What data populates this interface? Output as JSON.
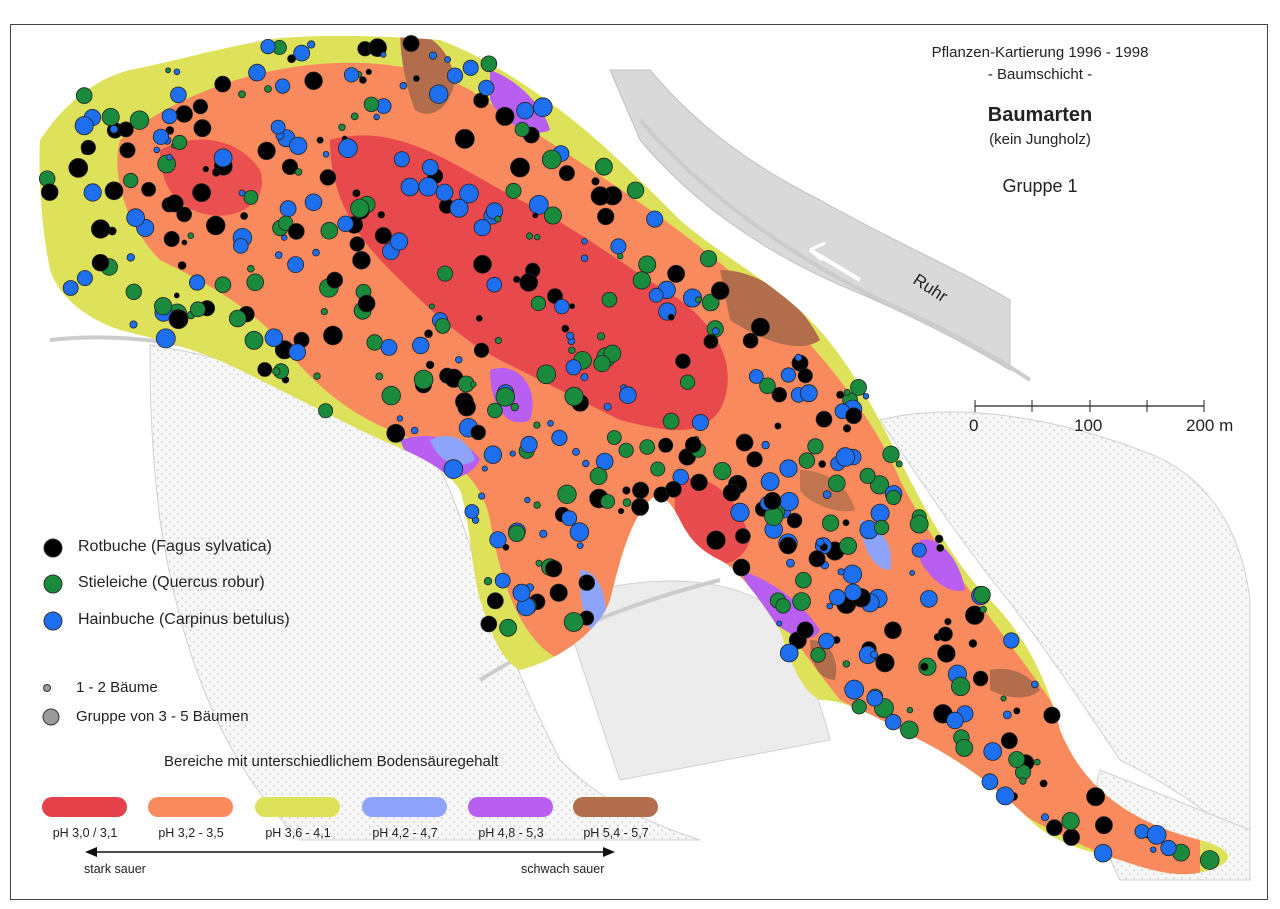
{
  "title": {
    "line1": "Pflanzen-Kartierung 1996 - 1998",
    "line2": "- Baumschicht -",
    "heading": "Baumarten",
    "subtitle": "(kein Jungholz)",
    "group": "Gruppe 1"
  },
  "river_label": "Ruhr",
  "scale_bar": {
    "ticks": [
      "0",
      "100",
      "200 m"
    ]
  },
  "species_legend": [
    {
      "label": "Rotbuche (Fagus sylvatica)",
      "color": "#000000"
    },
    {
      "label": "Stieleiche (Quercus robur)",
      "color": "#1a8a3c"
    },
    {
      "label": "Hainbuche (Carpinus betulus)",
      "color": "#1e6ff0"
    }
  ],
  "size_legend": [
    {
      "label": "1 - 2 Bäume",
      "color": "#9a9a9a"
    },
    {
      "label": "Gruppe von 3 - 5 Bäumen",
      "color": "#9a9a9a"
    }
  ],
  "ph_legend": {
    "title": "Bereiche mit unterschiedlichem Bodensäuregehalt",
    "classes": [
      {
        "label": "pH 3,0 / 3,1",
        "color": "#e5414b"
      },
      {
        "label": "pH 3,2 - 3,5",
        "color": "#f98a5e"
      },
      {
        "label": "pH 3,6 - 4,1",
        "color": "#dde25a"
      },
      {
        "label": "pH 4,2 - 4,7",
        "color": "#8ea3fa"
      },
      {
        "label": "pH 4,8 - 5,3",
        "color": "#b85ef0"
      },
      {
        "label": "pH 5,4 - 5,7",
        "color": "#b26e4c"
      }
    ],
    "arrow_left": "stark sauer",
    "arrow_right": "schwach sauer"
  }
}
